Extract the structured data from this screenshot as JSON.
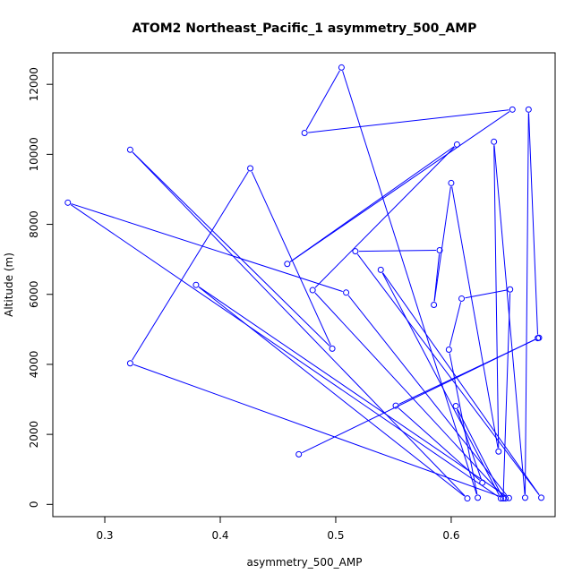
{
  "chart_data": {
    "type": "line",
    "title": "ATOM2 Northeast_Pacific_1 asymmetry_500_AMP",
    "xlabel": "asymmetry_500_AMP",
    "ylabel": "Altitude (m)",
    "xlim": [
      0.255,
      0.69
    ],
    "ylim": [
      -350,
      12900
    ],
    "xticks": [
      0.3,
      0.4,
      0.5,
      0.6
    ],
    "xtick_labels": [
      "0.3",
      "0.4",
      "0.5",
      "0.6"
    ],
    "yticks": [
      0,
      2000,
      4000,
      6000,
      8000,
      10000,
      12000
    ],
    "ytick_labels": [
      "0",
      "2000",
      "4000",
      "6000",
      "8000",
      "10000",
      "12000"
    ],
    "grid": false,
    "line_color": "#0000ff",
    "marker": "open-circle",
    "series": [
      {
        "points": [
          [
            0.468,
            1430
          ],
          [
            0.675,
            4750
          ],
          [
            0.667,
            11280
          ],
          [
            0.664,
            190
          ],
          [
            0.637,
            10360
          ],
          [
            0.641,
            1510
          ],
          [
            0.6,
            9180
          ],
          [
            0.585,
            5700
          ],
          [
            0.59,
            7260
          ],
          [
            0.517,
            7230
          ],
          [
            0.678,
            190
          ],
          [
            0.539,
            6700
          ],
          [
            0.643,
            170
          ],
          [
            0.268,
            8620
          ],
          [
            0.509,
            6050
          ],
          [
            0.65,
            180
          ],
          [
            0.379,
            6270
          ],
          [
            0.614,
            170
          ],
          [
            0.322,
            10130
          ],
          [
            0.497,
            4450
          ],
          [
            0.426,
            9600
          ],
          [
            0.322,
            4030
          ],
          [
            0.647,
            170
          ],
          [
            0.48,
            6120
          ],
          [
            0.605,
            10280
          ],
          [
            0.458,
            6870
          ],
          [
            0.653,
            11280
          ],
          [
            0.473,
            10610
          ],
          [
            0.505,
            12480
          ],
          [
            0.623,
            190
          ],
          [
            0.598,
            4420
          ],
          [
            0.609,
            5880
          ],
          [
            0.651,
            6140
          ],
          [
            0.645,
            170
          ],
          [
            0.604,
            2810
          ],
          [
            0.627,
            620
          ],
          [
            0.552,
            2820
          ],
          [
            0.676,
            4760
          ]
        ]
      }
    ]
  }
}
